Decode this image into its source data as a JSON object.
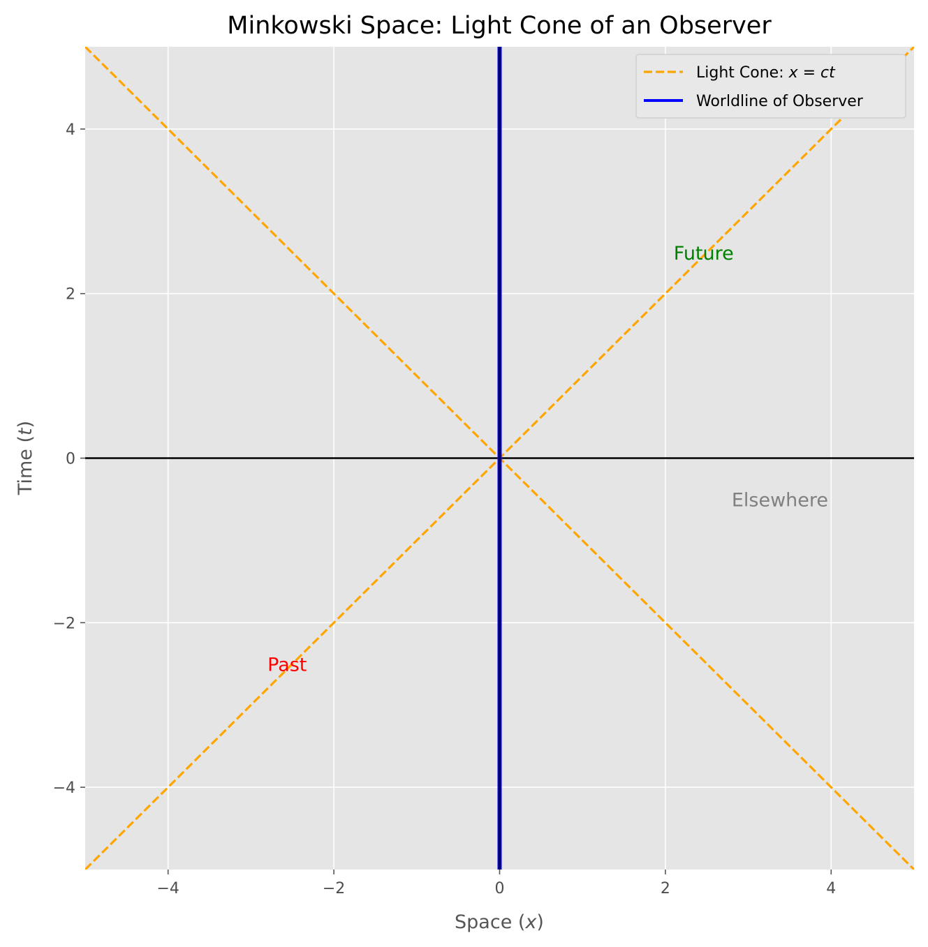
{
  "chart_data": {
    "type": "line",
    "title": "Minkowski Space: Light Cone of an Observer",
    "xlabel": "Space (x)",
    "ylabel": "Time (t)",
    "xlim": [
      -5,
      5
    ],
    "ylim": [
      -5,
      5
    ],
    "xticks": [
      -4,
      -2,
      0,
      2,
      4
    ],
    "yticks": [
      -4,
      -2,
      0,
      2,
      4
    ],
    "xtick_labels": [
      "−4",
      "−2",
      "0",
      "2",
      "4"
    ],
    "ytick_labels": [
      "−4",
      "−2",
      "0",
      "2",
      "4"
    ],
    "grid": true,
    "legend_position": "top-right",
    "series": [
      {
        "name": "Light Cone: x = ct",
        "style": "dashed",
        "color": "#ffa500",
        "x": [
          -5,
          5
        ],
        "y": [
          -5,
          5
        ]
      },
      {
        "name": "",
        "style": "dashed",
        "color": "#ffa500",
        "x": [
          -5,
          5
        ],
        "y": [
          5,
          -5
        ]
      },
      {
        "name": "Worldline of Observer",
        "style": "solid",
        "color": "#0000ff",
        "x": [
          0,
          0
        ],
        "y": [
          -5,
          5
        ]
      }
    ],
    "reference_lines": [
      {
        "orientation": "horizontal",
        "value": 0,
        "color": "#000000"
      }
    ],
    "annotations": [
      {
        "text": "Future",
        "x": 2.1,
        "y": 2.5,
        "color": "#008000"
      },
      {
        "text": "Past",
        "x": -2.8,
        "y": -2.5,
        "color": "#ff0000"
      },
      {
        "text": "Elsewhere",
        "x": 2.8,
        "y": -0.5,
        "color": "#808080"
      }
    ],
    "legend": [
      {
        "label": "Light Cone: ",
        "math": "x = ct",
        "color": "#ffa500",
        "style": "dashed"
      },
      {
        "label": "Worldline of Observer",
        "math": "",
        "color": "#0000ff",
        "style": "solid"
      }
    ],
    "colors": {
      "plot_background": "#e5e5e5",
      "grid": "#ffffff"
    }
  }
}
